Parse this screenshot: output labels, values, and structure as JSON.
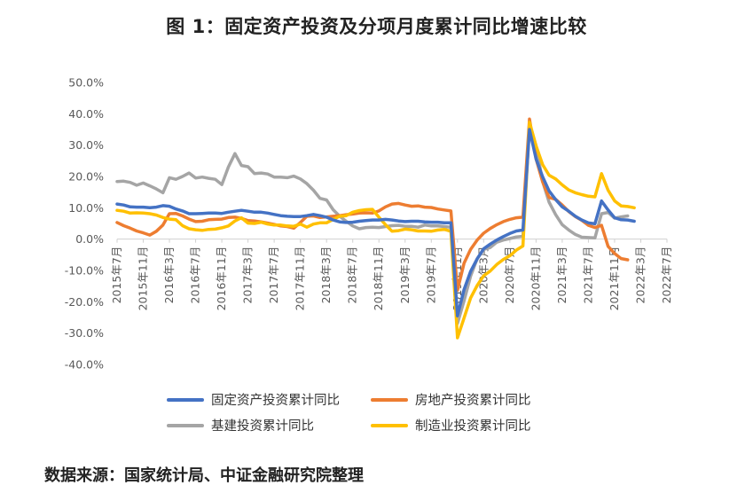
{
  "chart_data": {
    "type": "line",
    "title": "图 1：固定资产投资及分项月度累计同比增速比较",
    "xlabel": "",
    "ylabel": "",
    "ylim": [
      -40,
      50
    ],
    "yticks": [
      "50.0%",
      "40.0%",
      "30.0%",
      "20.0%",
      "10.0%",
      "0.0%",
      "-10.0%",
      "-20.0%",
      "-30.0%",
      "-40.0%"
    ],
    "xticks": [
      "2015年7月",
      "2015年11月",
      "2016年3月",
      "2016年7月",
      "2016年11月",
      "2017年3月",
      "2017年7月",
      "2017年11月",
      "2018年3月",
      "2018年7月",
      "2018年11月",
      "2019年3月",
      "2019年7月",
      "2019年11月",
      "2020年3月",
      "2020年7月",
      "2020年11月",
      "2021年3月",
      "2021年7月",
      "2021年11月",
      "2022年3月",
      "2022年7月"
    ],
    "grid": false,
    "legend": "bottom",
    "series": [
      {
        "name": "固定资产投资累计同比",
        "color": "#4472C4",
        "points": [
          [
            0,
            11.2
          ],
          [
            1,
            10.9
          ],
          [
            2,
            10.3
          ],
          [
            3,
            10.2
          ],
          [
            4,
            10.2
          ],
          [
            5,
            10.0
          ],
          [
            6,
            10.2
          ],
          [
            7,
            10.7
          ],
          [
            8,
            10.5
          ],
          [
            9,
            9.6
          ],
          [
            10,
            9.0
          ],
          [
            11,
            8.1
          ],
          [
            12,
            8.1
          ],
          [
            13,
            8.2
          ],
          [
            14,
            8.3
          ],
          [
            15,
            8.3
          ],
          [
            16,
            8.2
          ],
          [
            17,
            8.6
          ],
          [
            18,
            8.9
          ],
          [
            19,
            9.2
          ],
          [
            20,
            8.9
          ],
          [
            21,
            8.6
          ],
          [
            22,
            8.6
          ],
          [
            23,
            8.3
          ],
          [
            24,
            7.9
          ],
          [
            25,
            7.5
          ],
          [
            26,
            7.3
          ],
          [
            27,
            7.2
          ],
          [
            28,
            7.2
          ],
          [
            29,
            7.5
          ],
          [
            30,
            7.9
          ],
          [
            31,
            7.5
          ],
          [
            32,
            7.0
          ],
          [
            33,
            6.1
          ],
          [
            34,
            5.5
          ],
          [
            35,
            5.3
          ],
          [
            36,
            5.4
          ],
          [
            37,
            5.7
          ],
          [
            38,
            5.9
          ],
          [
            39,
            6.1
          ],
          [
            40,
            6.1
          ],
          [
            41,
            6.3
          ],
          [
            42,
            6.1
          ],
          [
            43,
            5.8
          ],
          [
            44,
            5.6
          ],
          [
            45,
            5.7
          ],
          [
            46,
            5.7
          ],
          [
            47,
            5.5
          ],
          [
            48,
            5.4
          ],
          [
            49,
            5.4
          ],
          [
            50,
            5.2
          ],
          [
            51,
            5.2
          ],
          [
            52,
            -24.5
          ],
          [
            53,
            -16.1
          ],
          [
            54,
            -10.3
          ],
          [
            55,
            -6.3
          ],
          [
            56,
            -3.1
          ],
          [
            57,
            -1.6
          ],
          [
            58,
            -0.3
          ],
          [
            59,
            0.8
          ],
          [
            60,
            1.8
          ],
          [
            61,
            2.6
          ],
          [
            62,
            2.9
          ],
          [
            63,
            35.0
          ],
          [
            64,
            25.6
          ],
          [
            65,
            19.9
          ],
          [
            66,
            15.4
          ],
          [
            67,
            12.6
          ],
          [
            68,
            10.3
          ],
          [
            69,
            8.9
          ],
          [
            70,
            7.3
          ],
          [
            71,
            6.1
          ],
          [
            72,
            5.2
          ],
          [
            73,
            4.9
          ],
          [
            74,
            12.2
          ],
          [
            75,
            9.3
          ],
          [
            76,
            6.8
          ],
          [
            77,
            6.2
          ],
          [
            78,
            6.1
          ],
          [
            79,
            5.7
          ]
        ]
      },
      {
        "name": "房地产投资累计同比",
        "color": "#ED7D31",
        "points": [
          [
            0,
            5.3
          ],
          [
            1,
            4.3
          ],
          [
            2,
            3.5
          ],
          [
            3,
            2.6
          ],
          [
            4,
            2.0
          ],
          [
            5,
            1.3
          ],
          [
            6,
            2.5
          ],
          [
            7,
            4.5
          ],
          [
            8,
            8.1
          ],
          [
            9,
            8.2
          ],
          [
            10,
            7.4
          ],
          [
            11,
            6.4
          ],
          [
            12,
            5.6
          ],
          [
            13,
            5.7
          ],
          [
            14,
            6.2
          ],
          [
            15,
            6.3
          ],
          [
            16,
            6.4
          ],
          [
            17,
            6.9
          ],
          [
            18,
            7.0
          ],
          [
            19,
            6.6
          ],
          [
            20,
            5.9
          ],
          [
            21,
            5.8
          ],
          [
            22,
            5.5
          ],
          [
            23,
            5.1
          ],
          [
            24,
            4.7
          ],
          [
            25,
            4.2
          ],
          [
            26,
            4.0
          ],
          [
            27,
            3.5
          ],
          [
            28,
            5.3
          ],
          [
            29,
            7.3
          ],
          [
            30,
            7.4
          ],
          [
            31,
            6.9
          ],
          [
            32,
            7.1
          ],
          [
            33,
            7.3
          ],
          [
            34,
            7.5
          ],
          [
            35,
            7.8
          ],
          [
            36,
            8.0
          ],
          [
            37,
            8.3
          ],
          [
            38,
            8.4
          ],
          [
            39,
            8.3
          ],
          [
            40,
            9.0
          ],
          [
            41,
            10.3
          ],
          [
            42,
            11.2
          ],
          [
            43,
            11.4
          ],
          [
            44,
            10.9
          ],
          [
            45,
            10.5
          ],
          [
            46,
            10.6
          ],
          [
            47,
            10.2
          ],
          [
            48,
            10.1
          ],
          [
            49,
            9.6
          ],
          [
            50,
            9.3
          ],
          [
            51,
            9.0
          ],
          [
            52,
            -16.3
          ],
          [
            53,
            -7.7
          ],
          [
            54,
            -3.3
          ],
          [
            55,
            -0.3
          ],
          [
            56,
            1.9
          ],
          [
            57,
            3.4
          ],
          [
            58,
            4.6
          ],
          [
            59,
            5.6
          ],
          [
            60,
            6.3
          ],
          [
            61,
            6.8
          ],
          [
            62,
            7.0
          ],
          [
            63,
            38.3
          ],
          [
            64,
            25.6
          ],
          [
            65,
            18.3
          ],
          [
            66,
            13.3
          ],
          [
            67,
            12.7
          ],
          [
            68,
            10.9
          ],
          [
            69,
            8.8
          ],
          [
            70,
            7.2
          ],
          [
            71,
            6.0
          ],
          [
            72,
            4.4
          ],
          [
            73,
            3.7
          ],
          [
            74,
            4.4
          ],
          [
            75,
            -2.3
          ],
          [
            76,
            -4.6
          ],
          [
            77,
            -6.2
          ],
          [
            78,
            -6.6
          ]
        ]
      },
      {
        "name": "基建投资累计同比",
        "color": "#A5A5A5",
        "points": [
          [
            0,
            18.4
          ],
          [
            1,
            18.5
          ],
          [
            2,
            18.1
          ],
          [
            3,
            17.2
          ],
          [
            4,
            17.9
          ],
          [
            5,
            17.0
          ],
          [
            6,
            16.0
          ],
          [
            7,
            14.8
          ],
          [
            8,
            19.6
          ],
          [
            9,
            19.1
          ],
          [
            10,
            20.0
          ],
          [
            11,
            21.1
          ],
          [
            12,
            19.5
          ],
          [
            13,
            19.8
          ],
          [
            14,
            19.4
          ],
          [
            15,
            19.1
          ],
          [
            16,
            17.4
          ],
          [
            17,
            23.0
          ],
          [
            18,
            27.3
          ],
          [
            19,
            23.5
          ],
          [
            20,
            23.1
          ],
          [
            21,
            20.9
          ],
          [
            22,
            21.1
          ],
          [
            23,
            20.8
          ],
          [
            24,
            19.8
          ],
          [
            25,
            19.8
          ],
          [
            26,
            19.6
          ],
          [
            27,
            20.1
          ],
          [
            28,
            19.2
          ],
          [
            29,
            17.7
          ],
          [
            30,
            15.6
          ],
          [
            31,
            13.0
          ],
          [
            32,
            12.5
          ],
          [
            33,
            9.4
          ],
          [
            34,
            7.3
          ],
          [
            35,
            5.7
          ],
          [
            36,
            4.2
          ],
          [
            37,
            3.3
          ],
          [
            38,
            3.7
          ],
          [
            39,
            3.8
          ],
          [
            40,
            3.7
          ],
          [
            41,
            4.0
          ],
          [
            42,
            4.3
          ],
          [
            43,
            4.4
          ],
          [
            44,
            4.1
          ],
          [
            45,
            4.1
          ],
          [
            46,
            3.8
          ],
          [
            47,
            4.5
          ],
          [
            48,
            4.2
          ],
          [
            49,
            4.2
          ],
          [
            50,
            4.0
          ],
          [
            51,
            3.8
          ],
          [
            52,
            -26.9
          ],
          [
            53,
            -19.7
          ],
          [
            54,
            -11.8
          ],
          [
            55,
            -6.3
          ],
          [
            56,
            -3.3
          ],
          [
            57,
            -2.7
          ],
          [
            58,
            -1.0
          ],
          [
            59,
            -0.3
          ],
          [
            60,
            0.2
          ],
          [
            61,
            0.7
          ],
          [
            62,
            0.9
          ],
          [
            63,
            36.6
          ],
          [
            64,
            29.7
          ],
          [
            65,
            18.4
          ],
          [
            66,
            11.8
          ],
          [
            67,
            7.8
          ],
          [
            68,
            4.6
          ],
          [
            69,
            2.9
          ],
          [
            70,
            1.5
          ],
          [
            71,
            0.6
          ],
          [
            72,
            0.5
          ],
          [
            73,
            0.4
          ],
          [
            74,
            8.1
          ],
          [
            75,
            8.5
          ],
          [
            76,
            6.7
          ],
          [
            77,
            7.1
          ],
          [
            78,
            7.4
          ]
        ]
      },
      {
        "name": "制造业投资累计同比",
        "color": "#FFC000",
        "points": [
          [
            0,
            9.2
          ],
          [
            1,
            8.9
          ],
          [
            2,
            8.3
          ],
          [
            3,
            8.4
          ],
          [
            4,
            8.3
          ],
          [
            5,
            8.1
          ],
          [
            6,
            7.7
          ],
          [
            7,
            6.9
          ],
          [
            8,
            6.4
          ],
          [
            9,
            6.2
          ],
          [
            10,
            4.3
          ],
          [
            11,
            3.3
          ],
          [
            12,
            3.0
          ],
          [
            13,
            2.8
          ],
          [
            14,
            3.1
          ],
          [
            15,
            3.2
          ],
          [
            16,
            3.6
          ],
          [
            17,
            4.2
          ],
          [
            18,
            5.8
          ],
          [
            19,
            6.8
          ],
          [
            20,
            5.1
          ],
          [
            21,
            5.0
          ],
          [
            22,
            5.4
          ],
          [
            23,
            4.8
          ],
          [
            24,
            4.5
          ],
          [
            25,
            4.5
          ],
          [
            26,
            4.2
          ],
          [
            27,
            4.1
          ],
          [
            28,
            4.8
          ],
          [
            29,
            3.8
          ],
          [
            30,
            4.8
          ],
          [
            31,
            5.2
          ],
          [
            32,
            5.2
          ],
          [
            33,
            6.3
          ],
          [
            34,
            7.3
          ],
          [
            35,
            7.5
          ],
          [
            36,
            8.6
          ],
          [
            37,
            9.1
          ],
          [
            38,
            9.4
          ],
          [
            39,
            9.5
          ],
          [
            40,
            7.0
          ],
          [
            41,
            4.6
          ],
          [
            42,
            2.5
          ],
          [
            43,
            2.7
          ],
          [
            44,
            3.2
          ],
          [
            45,
            3.0
          ],
          [
            46,
            2.6
          ],
          [
            47,
            2.6
          ],
          [
            48,
            2.5
          ],
          [
            49,
            2.9
          ],
          [
            50,
            3.1
          ],
          [
            51,
            2.5
          ],
          [
            52,
            -31.5
          ],
          [
            53,
            -25.2
          ],
          [
            54,
            -18.8
          ],
          [
            55,
            -14.8
          ],
          [
            56,
            -11.7
          ],
          [
            57,
            -10.2
          ],
          [
            58,
            -8.1
          ],
          [
            59,
            -6.5
          ],
          [
            60,
            -5.3
          ],
          [
            61,
            -3.5
          ],
          [
            62,
            -2.2
          ],
          [
            63,
            37.3
          ],
          [
            64,
            29.8
          ],
          [
            65,
            23.8
          ],
          [
            66,
            20.4
          ],
          [
            67,
            19.2
          ],
          [
            68,
            17.3
          ],
          [
            69,
            15.7
          ],
          [
            70,
            14.8
          ],
          [
            71,
            14.2
          ],
          [
            72,
            13.7
          ],
          [
            73,
            13.5
          ],
          [
            74,
            20.9
          ],
          [
            75,
            15.6
          ],
          [
            76,
            12.2
          ],
          [
            77,
            10.6
          ],
          [
            78,
            10.4
          ],
          [
            79,
            10.0
          ]
        ]
      }
    ]
  },
  "source_note": "数据来源：国家统计局、中证金融研究院整理"
}
